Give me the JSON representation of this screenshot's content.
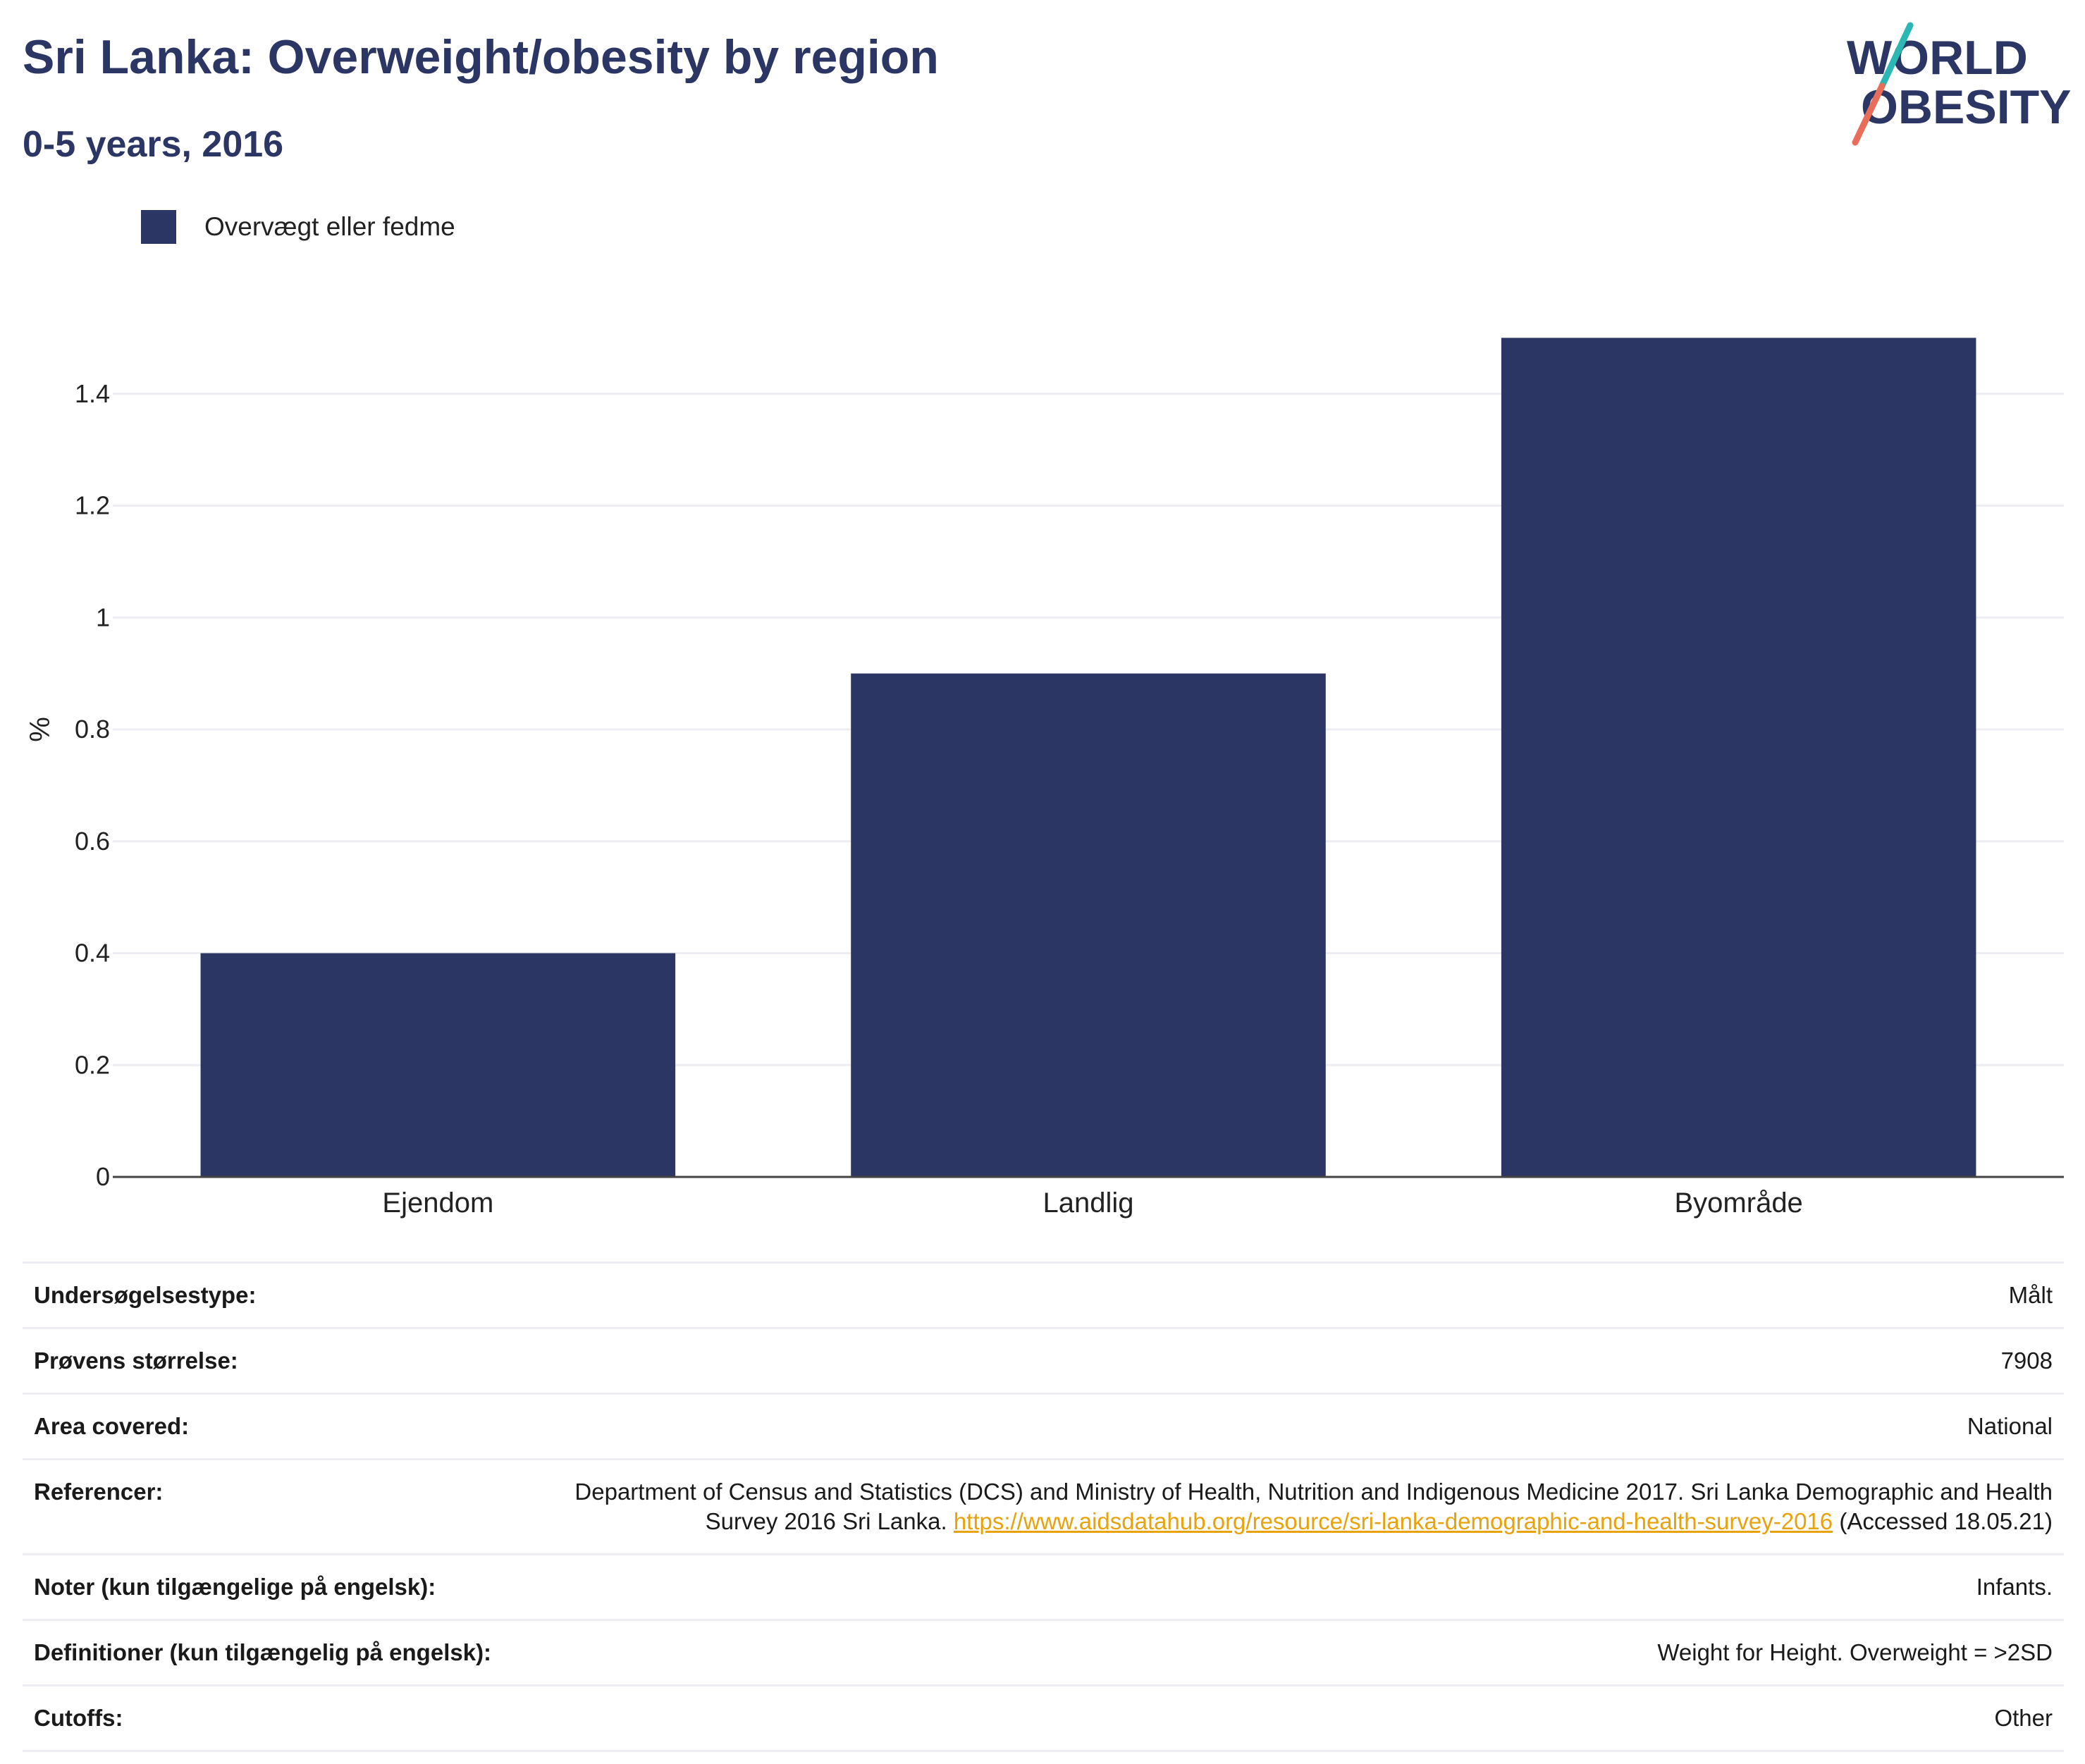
{
  "header": {
    "title": "Sri Lanka: Overweight/obesity by region",
    "subtitle": "0-5 years, 2016"
  },
  "logo": {
    "line1": "WORLD",
    "line2": "OBESITY"
  },
  "colors": {
    "bar": "#2b3664",
    "title": "#2b3664",
    "link": "#e8a20c",
    "grid": "#eceef4",
    "accent_teal": "#2bb7b3",
    "accent_coral": "#e86d5a"
  },
  "chart_data": {
    "type": "bar",
    "categories": [
      "Ejendom",
      "Landlig",
      "Byområde"
    ],
    "series": [
      {
        "name": "Overvægt eller fedme",
        "values": [
          0.4,
          0.9,
          1.5
        ]
      }
    ],
    "ylabel": "%",
    "xlabel": "",
    "ylim": [
      0,
      1.6
    ],
    "yticks": [
      0,
      0.2,
      0.4,
      0.6,
      0.8,
      1,
      1.2,
      1.4
    ],
    "ytick_labels": [
      "0",
      "0.2",
      "0.4",
      "0.6",
      "0.8",
      "1",
      "1.2",
      "1.4"
    ],
    "grid": true,
    "legend": "top-left"
  },
  "info": {
    "survey_type": {
      "label": "Undersøgelsestype:",
      "value": "Målt"
    },
    "sample_size": {
      "label": "Prøvens størrelse:",
      "value": "7908"
    },
    "area": {
      "label": "Area covered:",
      "value": "National"
    },
    "references": {
      "label": "Referencer:",
      "text_before": "Department of Census and Statistics (DCS) and Ministry of Health, Nutrition and Indigenous Medicine 2017. Sri Lanka Demographic and Health Survey 2016 Sri Lanka. ",
      "link": "https://www.aidsdatahub.org/resource/sri-lanka-demographic-and-health-survey-2016",
      "text_after": " (Accessed 18.05.21)"
    },
    "notes": {
      "label": "Noter (kun tilgængelige på engelsk):",
      "value": "Infants."
    },
    "definitions": {
      "label": "Definitioner (kun tilgængelig på engelsk):",
      "value": "Weight for Height. Overweight = >2SD"
    },
    "cutoffs": {
      "label": "Cutoffs:",
      "value": "Other"
    }
  }
}
